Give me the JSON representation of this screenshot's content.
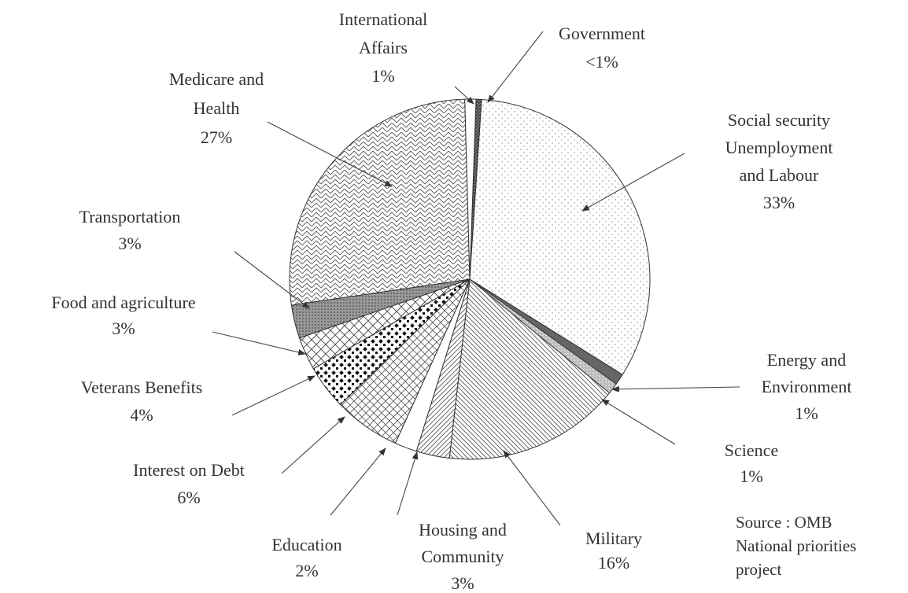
{
  "chart_data": {
    "type": "pie",
    "categories": [
      [
        "Government"
      ],
      [
        "Social security",
        "Unemployment",
        "and Labour"
      ],
      [
        "Energy and",
        "Environment"
      ],
      [
        "Science"
      ],
      [
        "Military"
      ],
      [
        "Housing and",
        "Community"
      ],
      [
        "Education"
      ],
      [
        "Interest on Debt"
      ],
      [
        "Veterans Benefits"
      ],
      [
        "Food and agriculture"
      ],
      [
        "Transportation"
      ],
      [
        "Medicare and",
        "Health"
      ],
      [
        "International",
        "Affairs"
      ]
    ],
    "values": [
      0.5,
      33,
      1,
      1,
      16,
      3,
      2,
      6,
      4,
      3,
      3,
      27,
      1
    ],
    "value_labels": [
      "<1%",
      "33%",
      "1%",
      "1%",
      "16%",
      "3%",
      "2%",
      "6%",
      "4%",
      "3%",
      "3%",
      "27%",
      "1%"
    ],
    "annotation": [
      "Source : OMB",
      "National priorities",
      "project"
    ]
  }
}
